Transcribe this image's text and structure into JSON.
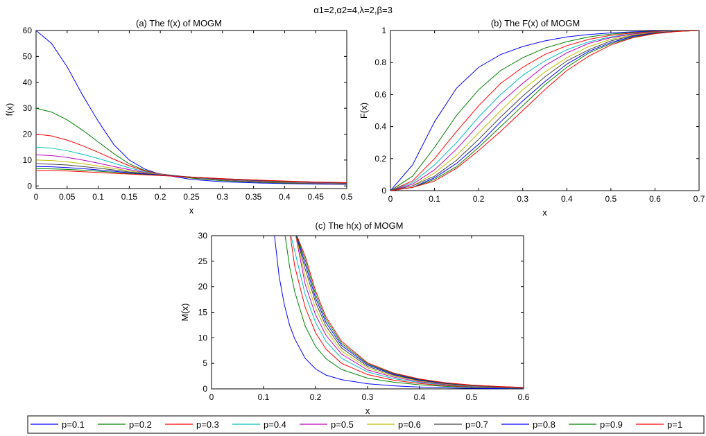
{
  "suptitle": "α1=2,α2=4,λ=2,β=3",
  "series_colors": [
    "#0000ff",
    "#008000",
    "#ff0000",
    "#00bfbf",
    "#bf00bf",
    "#bfbf00",
    "#404040",
    "#0000ff",
    "#008000",
    "#ff0000"
  ],
  "legend": [
    "p=0.1",
    "p=0.2",
    "p=0.3",
    "p=0.4",
    "p=0.5",
    "p=0.6",
    "p=0.7",
    "p=0.8",
    "p=0.9",
    "p=1"
  ],
  "chart_data": [
    {
      "type": "line",
      "title": "(a) The f(x) of MOGM",
      "xlabel": "x",
      "ylabel": "f(x)",
      "xlim": [
        0,
        0.5
      ],
      "ylim": [
        -1,
        60
      ],
      "xticks": [
        "0",
        "0.05",
        "0.1",
        "0.15",
        "0.2",
        "0.25",
        "0.3",
        "0.35",
        "0.4",
        "0.45",
        "0.5"
      ],
      "yticks": [
        "0",
        "10",
        "20",
        "30",
        "40",
        "50",
        "60"
      ],
      "x": [
        0,
        0.025,
        0.05,
        0.075,
        0.1,
        0.125,
        0.15,
        0.175,
        0.2,
        0.25,
        0.3,
        0.35,
        0.4,
        0.45,
        0.5
      ],
      "series": [
        {
          "name": "p=0.1",
          "values": [
            60,
            55,
            46,
            35,
            25,
            16,
            10,
            6.5,
            4.5,
            2.5,
            1.6,
            1.2,
            0.9,
            0.7,
            0.6
          ]
        },
        {
          "name": "p=0.2",
          "values": [
            30,
            28.5,
            25.5,
            21.5,
            17,
            12.5,
            8.5,
            6,
            4.6,
            3,
            2,
            1.5,
            1.1,
            0.9,
            0.7
          ]
        },
        {
          "name": "p=0.3",
          "values": [
            20,
            19.3,
            17.7,
            15.5,
            13,
            10.3,
            7.8,
            5.8,
            4.7,
            3.2,
            2.3,
            1.7,
            1.3,
            1,
            0.8
          ]
        },
        {
          "name": "p=0.4",
          "values": [
            15,
            14.6,
            13.6,
            12.2,
            10.6,
            8.8,
            7,
            5.5,
            4.6,
            3.3,
            2.4,
            1.8,
            1.4,
            1.1,
            0.9
          ]
        },
        {
          "name": "p=0.5",
          "values": [
            12,
            11.7,
            11,
            10,
            8.8,
            7.5,
            6.3,
            5.2,
            4.5,
            3.4,
            2.5,
            1.9,
            1.5,
            1.2,
            1
          ]
        },
        {
          "name": "p=0.6",
          "values": [
            10,
            9.8,
            9.3,
            8.6,
            7.7,
            6.8,
            5.8,
            5,
            4.4,
            3.4,
            2.6,
            2,
            1.6,
            1.3,
            1.1
          ]
        },
        {
          "name": "p=0.7",
          "values": [
            8.6,
            8.4,
            8.1,
            7.5,
            6.9,
            6.2,
            5.4,
            4.8,
            4.3,
            3.4,
            2.7,
            2.1,
            1.7,
            1.4,
            1.1
          ]
        },
        {
          "name": "p=0.8",
          "values": [
            7.5,
            7.4,
            7.1,
            6.7,
            6.2,
            5.7,
            5.1,
            4.6,
            4.2,
            3.4,
            2.7,
            2.2,
            1.8,
            1.4,
            1.2
          ]
        },
        {
          "name": "p=0.9",
          "values": [
            6.7,
            6.6,
            6.4,
            6.1,
            5.7,
            5.3,
            4.8,
            4.4,
            4.1,
            3.4,
            2.8,
            2.3,
            1.8,
            1.5,
            1.2
          ]
        },
        {
          "name": "p=1",
          "values": [
            6,
            5.9,
            5.8,
            5.5,
            5.2,
            4.9,
            4.6,
            4.3,
            4,
            3.4,
            2.8,
            2.3,
            1.9,
            1.5,
            1.3
          ]
        }
      ]
    },
    {
      "type": "line",
      "title": "(b) The F(x) of MOGM",
      "xlabel": "x",
      "ylabel": "F(x)",
      "xlim": [
        0,
        0.7
      ],
      "ylim": [
        0,
        1
      ],
      "xticks": [
        "0",
        "0.1",
        "0.2",
        "0.3",
        "0.4",
        "0.5",
        "0.6",
        "0.7"
      ],
      "yticks": [
        "0",
        "0.2",
        "0.4",
        "0.6",
        "0.8",
        "1"
      ],
      "x": [
        0,
        0.05,
        0.1,
        0.15,
        0.2,
        0.25,
        0.3,
        0.35,
        0.4,
        0.45,
        0.5,
        0.55,
        0.6,
        0.65,
        0.7
      ],
      "series": [
        {
          "name": "p=0.1",
          "values": [
            0,
            0.16,
            0.43,
            0.64,
            0.77,
            0.85,
            0.9,
            0.935,
            0.96,
            0.975,
            0.985,
            0.992,
            0.996,
            0.998,
            1
          ]
        },
        {
          "name": "p=0.2",
          "values": [
            0,
            0.09,
            0.27,
            0.47,
            0.63,
            0.75,
            0.83,
            0.89,
            0.93,
            0.96,
            0.978,
            0.988,
            0.994,
            0.998,
            1
          ]
        },
        {
          "name": "p=0.3",
          "values": [
            0,
            0.06,
            0.2,
            0.37,
            0.53,
            0.67,
            0.77,
            0.85,
            0.905,
            0.945,
            0.97,
            0.985,
            0.993,
            0.997,
            1
          ]
        },
        {
          "name": "p=0.4",
          "values": [
            0,
            0.05,
            0.16,
            0.3,
            0.46,
            0.6,
            0.72,
            0.81,
            0.88,
            0.93,
            0.96,
            0.98,
            0.991,
            0.997,
            1
          ]
        },
        {
          "name": "p=0.5",
          "values": [
            0,
            0.04,
            0.13,
            0.26,
            0.41,
            0.55,
            0.67,
            0.78,
            0.86,
            0.92,
            0.955,
            0.978,
            0.99,
            0.996,
            1
          ]
        },
        {
          "name": "p=0.6",
          "values": [
            0,
            0.03,
            0.11,
            0.22,
            0.36,
            0.5,
            0.63,
            0.74,
            0.83,
            0.9,
            0.945,
            0.973,
            0.988,
            0.996,
            1
          ]
        },
        {
          "name": "p=0.7",
          "values": [
            0,
            0.03,
            0.09,
            0.19,
            0.32,
            0.46,
            0.59,
            0.71,
            0.81,
            0.88,
            0.935,
            0.968,
            0.986,
            0.995,
            1
          ]
        },
        {
          "name": "p=0.8",
          "values": [
            0,
            0.02,
            0.08,
            0.17,
            0.29,
            0.43,
            0.56,
            0.68,
            0.79,
            0.87,
            0.925,
            0.963,
            0.984,
            0.995,
            1
          ]
        },
        {
          "name": "p=0.9",
          "values": [
            0,
            0.02,
            0.07,
            0.15,
            0.27,
            0.4,
            0.53,
            0.66,
            0.77,
            0.86,
            0.918,
            0.958,
            0.982,
            0.994,
            1
          ]
        },
        {
          "name": "p=1",
          "values": [
            0,
            0.02,
            0.06,
            0.14,
            0.25,
            0.37,
            0.5,
            0.63,
            0.75,
            0.84,
            0.91,
            0.955,
            0.98,
            0.994,
            1
          ]
        }
      ]
    },
    {
      "type": "line",
      "title": "(c) The h(x) of MOGM",
      "xlabel": "x",
      "ylabel": "M(x)",
      "xlim": [
        0,
        0.6
      ],
      "ylim": [
        0,
        30
      ],
      "xticks": [
        "0",
        "0.1",
        "0.2",
        "0.3",
        "0.4",
        "0.5",
        "0.6"
      ],
      "yticks": [
        "0",
        "5",
        "10",
        "15",
        "20",
        "25",
        "30"
      ],
      "x": [
        0.12,
        0.13,
        0.14,
        0.15,
        0.16,
        0.18,
        0.2,
        0.22,
        0.25,
        0.3,
        0.35,
        0.4,
        0.45,
        0.5,
        0.55,
        0.6
      ],
      "series": [
        {
          "name": "p=0.1",
          "values": [
            30,
            22,
            16.5,
            12.5,
            9.8,
            6,
            3.9,
            2.7,
            1.8,
            1.0,
            0.6,
            0.35,
            0.2,
            0.12,
            0.07,
            0.04
          ]
        },
        {
          "name": "p=0.2",
          "values": [
            null,
            null,
            30,
            24,
            19,
            12.3,
            8.3,
            5.9,
            3.8,
            2.1,
            1.3,
            0.8,
            0.5,
            0.3,
            0.18,
            0.1
          ]
        },
        {
          "name": "p=0.3",
          "values": [
            null,
            null,
            null,
            30,
            24,
            16,
            11,
            7.8,
            5,
            2.8,
            1.7,
            1.05,
            0.65,
            0.4,
            0.25,
            0.15
          ]
        },
        {
          "name": "p=0.4",
          "values": [
            null,
            null,
            null,
            30,
            27,
            18.5,
            13,
            9.3,
            6,
            3.3,
            2,
            1.25,
            0.78,
            0.48,
            0.3,
            0.18
          ]
        },
        {
          "name": "p=0.5",
          "values": [
            null,
            null,
            null,
            null,
            30,
            20.5,
            14.5,
            10.5,
            6.8,
            3.7,
            2.3,
            1.4,
            0.88,
            0.55,
            0.34,
            0.21
          ]
        },
        {
          "name": "p=0.6",
          "values": [
            null,
            null,
            null,
            null,
            30,
            22,
            15.8,
            11.5,
            7.4,
            4.1,
            2.5,
            1.55,
            0.97,
            0.6,
            0.37,
            0.23
          ]
        },
        {
          "name": "p=0.7",
          "values": [
            null,
            null,
            null,
            null,
            30,
            23.5,
            17,
            12.3,
            8,
            4.4,
            2.7,
            1.65,
            1.04,
            0.65,
            0.4,
            0.25
          ]
        },
        {
          "name": "p=0.8",
          "values": [
            null,
            null,
            null,
            null,
            30,
            24.5,
            17.8,
            13,
            8.5,
            4.7,
            2.85,
            1.75,
            1.1,
            0.69,
            0.43,
            0.27
          ]
        },
        {
          "name": "p=0.9",
          "values": [
            null,
            null,
            null,
            null,
            30,
            25.3,
            18.5,
            13.6,
            8.9,
            4.9,
            3,
            1.85,
            1.15,
            0.72,
            0.45,
            0.28
          ]
        },
        {
          "name": "p=1",
          "values": [
            null,
            null,
            null,
            null,
            30,
            26,
            19.2,
            14.1,
            9.3,
            5.1,
            3.1,
            1.93,
            1.2,
            0.75,
            0.47,
            0.29
          ]
        }
      ]
    }
  ]
}
